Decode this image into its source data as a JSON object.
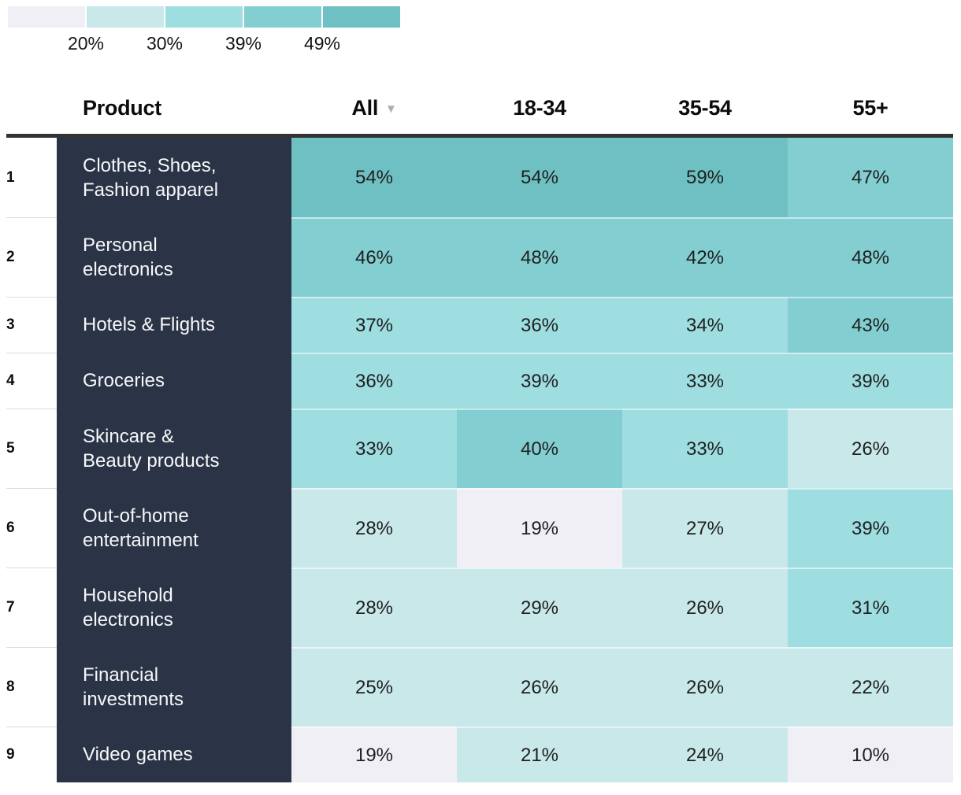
{
  "legend": {
    "colors": [
      "#F0EFF5",
      "#C9E8EA",
      "#9EDDE0",
      "#82CED1",
      "#6FC0C3"
    ],
    "labels": [
      "20%",
      "30%",
      "39%",
      "49%"
    ]
  },
  "header": {
    "product": "Product",
    "columns": [
      "All",
      "18-34",
      "35-54",
      "55+"
    ],
    "sort_icon": "▼"
  },
  "palette": {
    "1": "#F0EFF5",
    "2": "#C9E8EA",
    "3": "#9EDDE0",
    "4": "#82CED1",
    "5": "#6FC0C3"
  },
  "colors": {
    "sidebar_bg": "#2B3447",
    "sidebar_text": "#F7F8F9",
    "header_rule": "#333333",
    "sort_icon": "#ADADAD",
    "cell_text": "#1F1F1F"
  },
  "table": {
    "rows": [
      {
        "num": "1",
        "label": "Clothes, Shoes,\nFashion apparel",
        "cells": [
          {
            "value": "54%",
            "level": 5
          },
          {
            "value": "54%",
            "level": 5
          },
          {
            "value": "59%",
            "level": 5
          },
          {
            "value": "47%",
            "level": 4
          }
        ]
      },
      {
        "num": "2",
        "label": "Personal\nelectronics",
        "cells": [
          {
            "value": "46%",
            "level": 4
          },
          {
            "value": "48%",
            "level": 4
          },
          {
            "value": "42%",
            "level": 4
          },
          {
            "value": "48%",
            "level": 4
          }
        ]
      },
      {
        "num": "3",
        "label": "Hotels & Flights",
        "cells": [
          {
            "value": "37%",
            "level": 3
          },
          {
            "value": "36%",
            "level": 3
          },
          {
            "value": "34%",
            "level": 3
          },
          {
            "value": "43%",
            "level": 4
          }
        ]
      },
      {
        "num": "4",
        "label": "Groceries",
        "cells": [
          {
            "value": "36%",
            "level": 3
          },
          {
            "value": "39%",
            "level": 3
          },
          {
            "value": "33%",
            "level": 3
          },
          {
            "value": "39%",
            "level": 3
          }
        ]
      },
      {
        "num": "5",
        "label": "Skincare &\nBeauty products",
        "cells": [
          {
            "value": "33%",
            "level": 3
          },
          {
            "value": "40%",
            "level": 4
          },
          {
            "value": "33%",
            "level": 3
          },
          {
            "value": "26%",
            "level": 2
          }
        ]
      },
      {
        "num": "6",
        "label": "Out-of-home\nentertainment",
        "cells": [
          {
            "value": "28%",
            "level": 2
          },
          {
            "value": "19%",
            "level": 1
          },
          {
            "value": "27%",
            "level": 2
          },
          {
            "value": "39%",
            "level": 3
          }
        ]
      },
      {
        "num": "7",
        "label": "Household\nelectronics",
        "cells": [
          {
            "value": "28%",
            "level": 2
          },
          {
            "value": "29%",
            "level": 2
          },
          {
            "value": "26%",
            "level": 2
          },
          {
            "value": "31%",
            "level": 3
          }
        ]
      },
      {
        "num": "8",
        "label": "Financial\ninvestments",
        "cells": [
          {
            "value": "25%",
            "level": 2
          },
          {
            "value": "26%",
            "level": 2
          },
          {
            "value": "26%",
            "level": 2
          },
          {
            "value": "22%",
            "level": 2
          }
        ]
      },
      {
        "num": "9",
        "label": "Video games",
        "cells": [
          {
            "value": "19%",
            "level": 1
          },
          {
            "value": "21%",
            "level": 2
          },
          {
            "value": "24%",
            "level": 2
          },
          {
            "value": "10%",
            "level": 1
          }
        ]
      }
    ]
  },
  "chart_data": {
    "type": "heatmap",
    "title": "",
    "row_header": "Product",
    "columns": [
      "All",
      "18-34",
      "35-54",
      "55+"
    ],
    "rows": [
      "Clothes, Shoes, Fashion apparel",
      "Personal electronics",
      "Hotels & Flights",
      "Groceries",
      "Skincare & Beauty products",
      "Out-of-home entertainment",
      "Household electronics",
      "Financial investments",
      "Video games"
    ],
    "values_pct": [
      [
        54,
        54,
        59,
        47
      ],
      [
        46,
        48,
        42,
        48
      ],
      [
        37,
        36,
        34,
        43
      ],
      [
        36,
        39,
        33,
        39
      ],
      [
        33,
        40,
        33,
        26
      ],
      [
        28,
        19,
        27,
        39
      ],
      [
        28,
        29,
        26,
        31
      ],
      [
        25,
        26,
        26,
        22
      ],
      [
        19,
        21,
        24,
        10
      ]
    ],
    "color_scale": {
      "type": "threshold",
      "threshold_labels": [
        "20%",
        "30%",
        "39%",
        "49%"
      ],
      "colors": [
        "#F0EFF5",
        "#C9E8EA",
        "#9EDDE0",
        "#82CED1",
        "#6FC0C3"
      ]
    },
    "legend_position": "top-left"
  }
}
